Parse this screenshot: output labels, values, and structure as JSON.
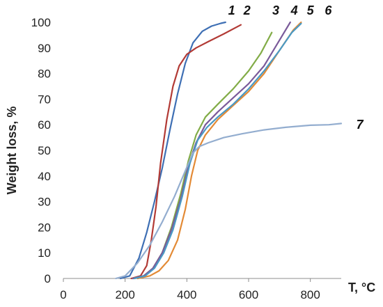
{
  "chart_data": {
    "type": "line",
    "xlabel": "T, °C",
    "ylabel": "Weight loss, %",
    "xlim": [
      0,
      900
    ],
    "ylim": [
      0,
      100
    ],
    "xticks": [
      0,
      200,
      400,
      600,
      800
    ],
    "yticks": [
      0,
      10,
      20,
      30,
      40,
      50,
      60,
      70,
      80,
      90,
      100
    ],
    "grid": false,
    "series": [
      {
        "name": "1",
        "color": "#3e6fb4",
        "points": [
          [
            185,
            0
          ],
          [
            215,
            1
          ],
          [
            245,
            8
          ],
          [
            270,
            18
          ],
          [
            295,
            30
          ],
          [
            320,
            43
          ],
          [
            345,
            58
          ],
          [
            370,
            72
          ],
          [
            395,
            84
          ],
          [
            420,
            92
          ],
          [
            450,
            96.5
          ],
          [
            480,
            98.5
          ],
          [
            510,
            99.6
          ],
          [
            525,
            100
          ]
        ]
      },
      {
        "name": "2",
        "color": "#b23a35",
        "points": [
          [
            220,
            0
          ],
          [
            250,
            1
          ],
          [
            270,
            5
          ],
          [
            285,
            15
          ],
          [
            300,
            28
          ],
          [
            315,
            45
          ],
          [
            335,
            62
          ],
          [
            355,
            75
          ],
          [
            375,
            83
          ],
          [
            400,
            87.5
          ],
          [
            430,
            90
          ],
          [
            470,
            92.5
          ],
          [
            520,
            95.5
          ],
          [
            575,
            99
          ]
        ]
      },
      {
        "name": "3",
        "color": "#82ac47",
        "points": [
          [
            225,
            0
          ],
          [
            260,
            1
          ],
          [
            290,
            4
          ],
          [
            320,
            10
          ],
          [
            350,
            20
          ],
          [
            380,
            33
          ],
          [
            405,
            46
          ],
          [
            430,
            56
          ],
          [
            460,
            63
          ],
          [
            500,
            68
          ],
          [
            550,
            74
          ],
          [
            600,
            81
          ],
          [
            640,
            88
          ],
          [
            675,
            96
          ]
        ]
      },
      {
        "name": "4",
        "color": "#7a5a9a",
        "points": [
          [
            225,
            0
          ],
          [
            260,
            1
          ],
          [
            290,
            4
          ],
          [
            320,
            10
          ],
          [
            350,
            19
          ],
          [
            380,
            31
          ],
          [
            405,
            44
          ],
          [
            430,
            53
          ],
          [
            460,
            60
          ],
          [
            500,
            65
          ],
          [
            550,
            70.5
          ],
          [
            600,
            76
          ],
          [
            650,
            83
          ],
          [
            700,
            93
          ],
          [
            735,
            100
          ]
        ]
      },
      {
        "name": "5",
        "color": "#e38a35",
        "points": [
          [
            240,
            0
          ],
          [
            280,
            1
          ],
          [
            310,
            3
          ],
          [
            340,
            7
          ],
          [
            370,
            15
          ],
          [
            395,
            27
          ],
          [
            415,
            40
          ],
          [
            435,
            50
          ],
          [
            460,
            56
          ],
          [
            500,
            62
          ],
          [
            550,
            67.5
          ],
          [
            600,
            73
          ],
          [
            650,
            80
          ],
          [
            700,
            89
          ],
          [
            745,
            97
          ],
          [
            770,
            100
          ]
        ]
      },
      {
        "name": "6",
        "color": "#4a99c4",
        "points": [
          [
            230,
            0
          ],
          [
            265,
            1
          ],
          [
            295,
            4
          ],
          [
            325,
            10
          ],
          [
            355,
            19
          ],
          [
            385,
            32
          ],
          [
            410,
            45
          ],
          [
            435,
            54
          ],
          [
            465,
            59
          ],
          [
            500,
            63
          ],
          [
            550,
            68
          ],
          [
            600,
            74
          ],
          [
            650,
            81
          ],
          [
            700,
            89
          ],
          [
            740,
            96
          ],
          [
            770,
            99.5
          ]
        ]
      },
      {
        "name": "7",
        "color": "#93adcf",
        "points": [
          [
            170,
            0
          ],
          [
            200,
            1
          ],
          [
            240,
            6
          ],
          [
            280,
            13
          ],
          [
            320,
            22
          ],
          [
            360,
            32
          ],
          [
            395,
            42
          ],
          [
            420,
            49
          ],
          [
            440,
            51.5
          ],
          [
            470,
            53
          ],
          [
            520,
            55
          ],
          [
            580,
            56.5
          ],
          [
            650,
            58
          ],
          [
            720,
            59
          ],
          [
            800,
            59.8
          ],
          [
            860,
            60
          ],
          [
            900,
            60.5
          ]
        ]
      }
    ]
  }
}
